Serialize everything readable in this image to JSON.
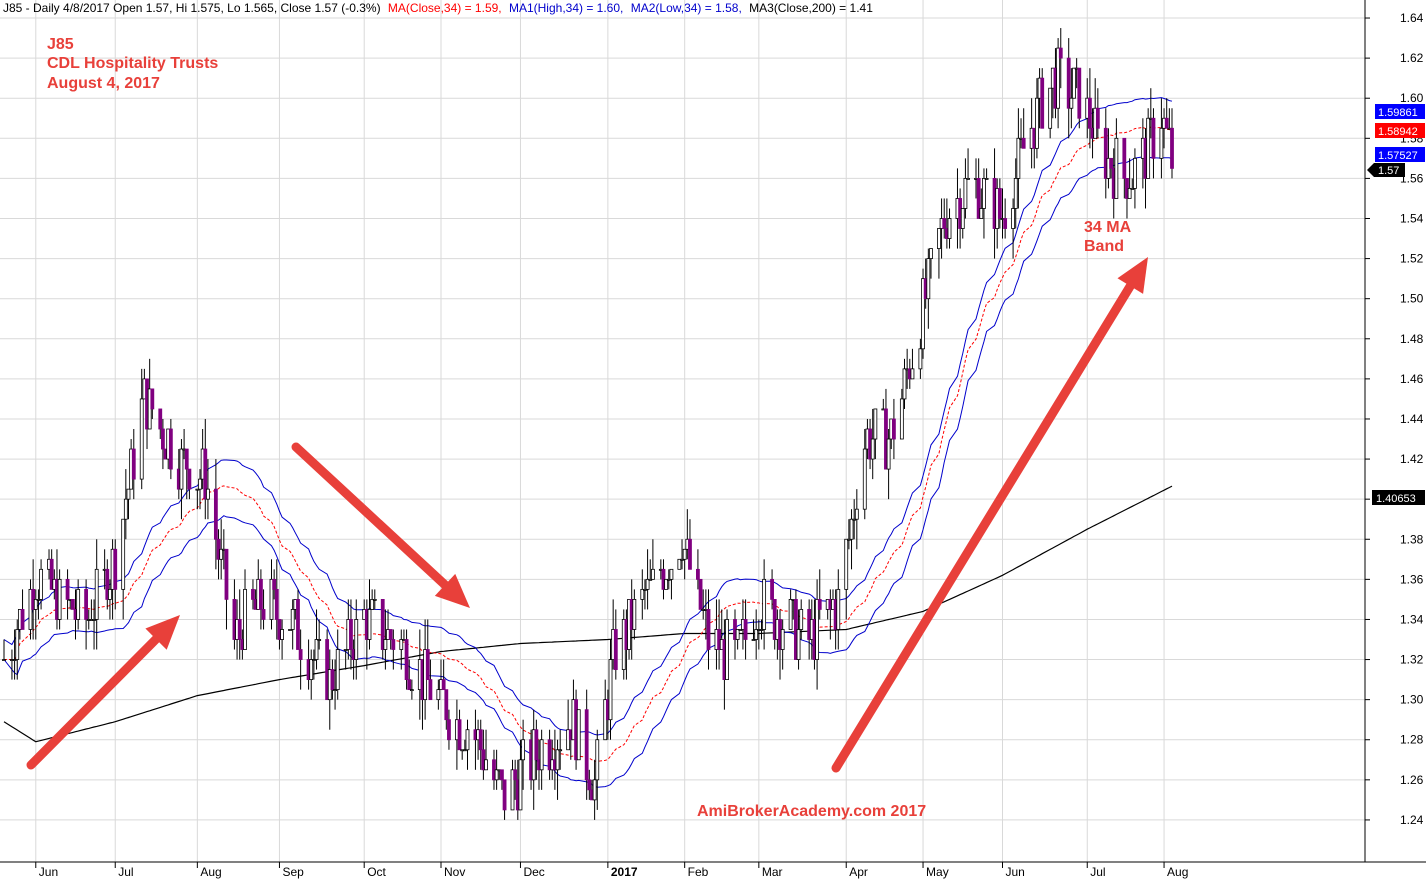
{
  "header": {
    "main_text": "J85 - Daily 4/8/2017 Open 1.57, Hi 1.575, Lo 1.565, Close 1.57 (-0.3%)",
    "ma_text": "MA(Close,34) = 1.59,",
    "ma1_text": "MA1(High,34) = 1.60,",
    "ma2_text": "MA2(Low,34) = 1.58,",
    "ma3_text": "MA3(Close,200) = 1.41"
  },
  "annotations": {
    "title_line1": "J85",
    "title_line2": "CDL Hospitality Trusts",
    "title_line3": "August 4, 2017",
    "band_line1": "34 MA",
    "band_line2": "Band",
    "watermark": "AmiBroker​Academy.com  2017"
  },
  "colors": {
    "candles": "#800080",
    "ma_close": "#ff0000",
    "ma_high_low": "#0000cc",
    "ma200": "#000000",
    "arrow": "#e8403a",
    "annotation_text": "#e8403a",
    "grid": "#d9d9d9"
  },
  "chart_data": {
    "type": "candlestick",
    "symbol": "J85",
    "period": "Daily",
    "ylim": [
      1.225,
      1.645
    ],
    "y_ticks": [
      1.24,
      1.26,
      1.28,
      1.3,
      1.32,
      1.34,
      1.36,
      1.38,
      1.4,
      1.42,
      1.44,
      1.46,
      1.48,
      1.5,
      1.52,
      1.54,
      1.56,
      1.58,
      1.6,
      1.62,
      1.64
    ],
    "y_tick_labels": [
      "1.24",
      "1.26",
      "1.28",
      "1.30",
      "1.32",
      "1.34",
      "1.36",
      "1.38",
      "1.40",
      "1.42",
      "1.44",
      "1.46",
      "1.48",
      "1.50",
      "1.52",
      "1.54",
      "1.56",
      "1.58",
      "1.60",
      "1.62",
      "1.64"
    ],
    "x_tick_labels": [
      "Jun",
      "Jul",
      "Aug",
      "Sep",
      "Oct",
      "Nov",
      "Dec",
      "2017",
      "Feb",
      "Mar",
      "Apr",
      "May",
      "Jun",
      "Jul",
      "Aug"
    ],
    "x_tick_dates": [
      "2016-06-01",
      "2016-07-01",
      "2016-08-01",
      "2016-09-01",
      "2016-10-03",
      "2016-11-01",
      "2016-12-01",
      "2017-01-03",
      "2017-02-01",
      "2017-03-01",
      "2017-04-03",
      "2017-05-02",
      "2017-06-01",
      "2017-07-03",
      "2017-08-01"
    ],
    "date_range": [
      "2016-05-20",
      "2017-08-04"
    ],
    "close_anchors": {
      "dates": [
        "2016-05-20",
        "2016-06-01",
        "2016-06-20",
        "2016-07-01",
        "2016-07-12",
        "2016-07-25",
        "2016-08-04",
        "2016-08-15",
        "2016-08-25",
        "2016-09-05",
        "2016-09-20",
        "2016-10-03",
        "2016-10-15",
        "2016-10-31",
        "2016-11-15",
        "2016-11-25",
        "2016-12-05",
        "2016-12-20",
        "2016-12-29",
        "2017-01-05",
        "2017-01-16",
        "2017-01-31",
        "2017-02-10",
        "2017-02-20",
        "2017-03-01",
        "2017-03-10",
        "2017-03-20",
        "2017-03-31",
        "2017-04-10",
        "2017-04-20",
        "2017-05-01",
        "2017-05-10",
        "2017-05-20",
        "2017-06-01",
        "2017-06-10",
        "2017-06-20",
        "2017-07-01",
        "2017-07-10",
        "2017-07-20",
        "2017-07-31",
        "2017-08-04"
      ],
      "values": [
        1.32,
        1.36,
        1.34,
        1.37,
        1.45,
        1.42,
        1.41,
        1.33,
        1.35,
        1.34,
        1.31,
        1.34,
        1.33,
        1.3,
        1.28,
        1.25,
        1.27,
        1.29,
        1.26,
        1.32,
        1.35,
        1.38,
        1.33,
        1.32,
        1.35,
        1.34,
        1.33,
        1.35,
        1.43,
        1.43,
        1.49,
        1.54,
        1.56,
        1.54,
        1.58,
        1.61,
        1.6,
        1.57,
        1.56,
        1.59,
        1.57
      ]
    },
    "ma200_anchors": {
      "dates": [
        "2016-05-20",
        "2016-06-01",
        "2016-07-01",
        "2016-08-01",
        "2016-09-01",
        "2016-10-03",
        "2016-11-01",
        "2016-12-01",
        "2017-01-03",
        "2017-02-01",
        "2017-03-01",
        "2017-04-03",
        "2017-05-02",
        "2017-06-01",
        "2017-07-03",
        "2017-08-04"
      ],
      "values": [
        1.289,
        1.279,
        1.289,
        1.302,
        1.31,
        1.317,
        1.324,
        1.328,
        1.33,
        1.333,
        1.333,
        1.335,
        1.344,
        1.362,
        1.385,
        1.4065
      ]
    },
    "last_values": {
      "ma_high_34": "1.59861",
      "ma_close_34": "1.58942",
      "ma_low_34": "1.57527",
      "close": "1.57",
      "ma_200": "1.40653"
    },
    "series": [
      {
        "name": "MA(Close,34)",
        "style": "dashed",
        "color": "#ff0000"
      },
      {
        "name": "MA1(High,34)",
        "style": "solid",
        "color": "#0000cc"
      },
      {
        "name": "MA2(Low,34)",
        "style": "solid",
        "color": "#0000cc"
      },
      {
        "name": "MA3(Close,200)",
        "style": "solid",
        "color": "#000000"
      }
    ],
    "grid": true
  }
}
